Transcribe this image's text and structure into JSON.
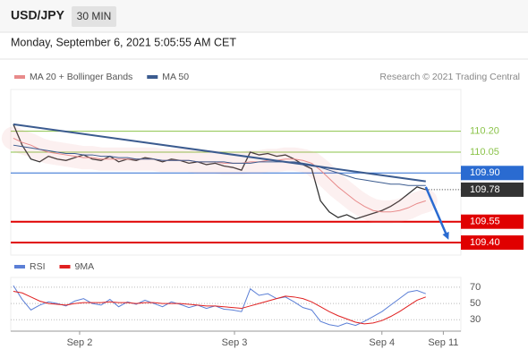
{
  "header": {
    "symbol": "USD/JPY",
    "timeframe": "30 MIN",
    "datetime": "Monday, September 6, 2021 5:05:55 AM CET"
  },
  "chart_data": [
    {
      "type": "line",
      "source": "Research © 2021 Trading Central",
      "xlim": [
        -0.3,
        51
      ],
      "ylim": [
        109.31,
        110.5
      ],
      "xticks": [
        {
          "value": 7.55,
          "label": "Sep 2"
        },
        {
          "value": 25.2,
          "label": "Sep 3"
        },
        {
          "value": 42,
          "label": "Sep 4"
        },
        {
          "value": 49,
          "label": "Sep 11"
        }
      ],
      "series": [
        {
          "color": "#333333",
          "values": [
            110.25,
            110.1,
            110.0,
            109.98,
            110.02,
            110.0,
            109.99,
            110.01,
            110.03,
            110.0,
            109.99,
            110.02,
            109.98,
            110.0,
            109.99,
            110.01,
            110.0,
            109.98,
            110.0,
            109.99,
            109.97,
            109.98,
            109.96,
            109.97,
            109.95,
            109.94,
            109.92,
            110.05,
            110.03,
            110.04,
            110.02,
            110.03,
            110.0,
            109.96,
            109.93,
            109.7,
            109.62,
            109.58,
            109.6,
            109.57,
            109.59,
            109.61,
            109.63,
            109.66,
            109.7,
            109.75,
            109.8,
            109.78
          ]
        },
        {
          "name": "MA 20 + Bollinger Bands",
          "color": "#e88a8a",
          "values": [
            110.15,
            110.12,
            110.1,
            110.07,
            110.05,
            110.04,
            110.03,
            110.02,
            110.01,
            110.01,
            110.0,
            110.0,
            110.0,
            110.0,
            110.0,
            110.0,
            110.0,
            109.99,
            109.99,
            109.99,
            109.99,
            109.98,
            109.98,
            109.98,
            109.97,
            109.97,
            109.97,
            109.98,
            109.98,
            109.99,
            109.99,
            110.0,
            110.0,
            109.99,
            109.97,
            109.92,
            109.86,
            109.8,
            109.75,
            109.7,
            109.66,
            109.63,
            109.62,
            109.62,
            109.63,
            109.65,
            109.68,
            109.7
          ]
        },
        {
          "name": "MA 50",
          "color": "#3b5b8f",
          "values": [
            110.1,
            110.09,
            110.08,
            110.07,
            110.06,
            110.05,
            110.04,
            110.04,
            110.03,
            110.03,
            110.02,
            110.02,
            110.01,
            110.01,
            110.0,
            110.0,
            110.0,
            109.99,
            109.99,
            109.99,
            109.99,
            109.98,
            109.98,
            109.98,
            109.98,
            109.97,
            109.97,
            109.97,
            109.98,
            109.98,
            109.98,
            109.98,
            109.98,
            109.97,
            109.96,
            109.94,
            109.92,
            109.9,
            109.88,
            109.86,
            109.85,
            109.84,
            109.83,
            109.82,
            109.82,
            109.81,
            109.81,
            109.81
          ]
        }
      ],
      "trendline": {
        "color": "#3b5b8f",
        "x": [
          0,
          47
        ],
        "y": [
          110.25,
          109.84
        ]
      },
      "forecast_arrow": {
        "color": "#2a6bd1",
        "x": [
          47,
          49.6
        ],
        "y": [
          109.8,
          109.42
        ]
      },
      "levels": [
        {
          "value": 110.2,
          "label": "110.20",
          "color": "#8bc34a",
          "style": "text"
        },
        {
          "value": 110.05,
          "label": "110.05",
          "color": "#8bc34a",
          "style": "text"
        },
        {
          "value": 109.9,
          "label": "109.90",
          "color": "#2a6bd1",
          "style": "box"
        },
        {
          "value": 109.78,
          "label": "109.78",
          "color": "#333333",
          "style": "current"
        },
        {
          "value": 109.55,
          "label": "109.55",
          "color": "#e00000",
          "style": "box"
        },
        {
          "value": 109.4,
          "label": "109.40",
          "color": "#e00000",
          "style": "box"
        }
      ]
    },
    {
      "type": "line",
      "xlim": [
        -0.3,
        51
      ],
      "ylim": [
        16,
        82
      ],
      "yticks": [
        70,
        50,
        30
      ],
      "grid": true,
      "series": [
        {
          "name": "RSI",
          "color": "#5b7fd6",
          "values": [
            72,
            55,
            42,
            48,
            52,
            50,
            47,
            53,
            56,
            50,
            48,
            55,
            46,
            52,
            49,
            54,
            50,
            46,
            52,
            49,
            45,
            48,
            44,
            47,
            43,
            42,
            40,
            68,
            60,
            62,
            56,
            58,
            52,
            45,
            42,
            28,
            24,
            22,
            26,
            23,
            28,
            34,
            40,
            48,
            56,
            64,
            66,
            62
          ]
        },
        {
          "name": "9MA",
          "color": "#e02020",
          "values": [
            65,
            63,
            58,
            53,
            50,
            49,
            48,
            50,
            51,
            51,
            51,
            52,
            51,
            51,
            50,
            51,
            51,
            50,
            50,
            50,
            49,
            48,
            47,
            47,
            46,
            45,
            44,
            47,
            50,
            53,
            56,
            59,
            58,
            56,
            52,
            46,
            40,
            35,
            31,
            27,
            25,
            26,
            29,
            34,
            40,
            47,
            54,
            58
          ]
        }
      ]
    }
  ]
}
